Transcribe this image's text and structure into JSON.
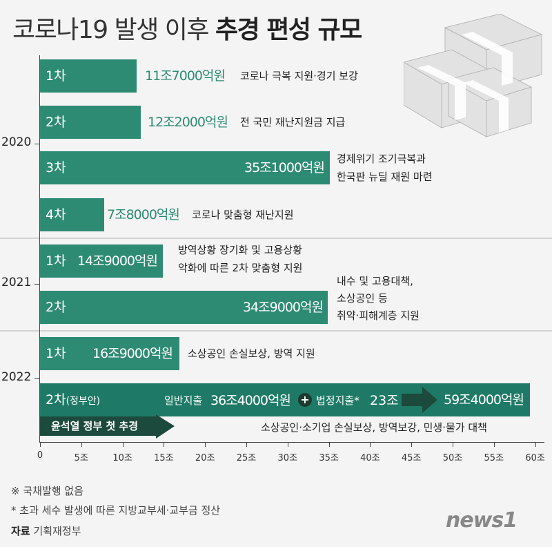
{
  "title": {
    "prefix": "코로나19 발생 이후",
    "emph": "추경 편성 규모"
  },
  "x_axis": {
    "unit": "조",
    "ticks": [
      "0",
      "5조",
      "10조",
      "15조",
      "20조",
      "25조",
      "30조",
      "35조",
      "40조",
      "45조",
      "50조",
      "55조",
      "60조"
    ],
    "max": 60
  },
  "groups": [
    {
      "year": "2020",
      "bars": [
        {
          "round": "1차",
          "value_label": "11조7000억원",
          "desc": [
            "코로나 극복 지원·경기 보강"
          ]
        },
        {
          "round": "2차",
          "value_label": "12조2000억원",
          "desc": [
            "전 국민 재난지원금 지급"
          ]
        },
        {
          "round": "3차",
          "value_label": "35조1000억원",
          "desc": [
            "경제위기 조기극복과",
            "한국판 뉴딜 재원 마련"
          ]
        },
        {
          "round": "4차",
          "value_label": "7조8000억원",
          "desc": [
            "코로나 맞춤형 재난지원"
          ]
        }
      ]
    },
    {
      "year": "2021",
      "bars": [
        {
          "round": "1차",
          "value_label": "14조9000억원",
          "desc": [
            "방역상황 장기화 및 고용상황",
            "악화에 따른 2차 맞춤형 지원"
          ]
        },
        {
          "round": "2차",
          "value_label": "34조9000억원",
          "desc": [
            "내수 및 고용대책,",
            "소상공인 등",
            "취약·피해계층 지원"
          ]
        }
      ]
    },
    {
      "year": "2022",
      "bars": [
        {
          "round": "1차",
          "value_label": "16조9000억원",
          "desc": [
            "소상공인 손실보상, 방역 지원"
          ]
        },
        {
          "round": "2차",
          "round_note": "(정부안)",
          "value_label": "59조4000억원",
          "general_label": "일반지출",
          "general_value": "36조4000억원",
          "plus": "+",
          "legal_label": "법정지출*",
          "legal_value": "23조",
          "desc": [
            "소상공인·소기업 손실보상, 방역보강, 민생·물가 대책"
          ]
        }
      ]
    }
  ],
  "banner": "윤석열 정부 첫 추경",
  "notes": [
    "※ 국채발행 없음",
    "*  초과 세수 발생에 따른 지방교부세·교부금 정산"
  ],
  "source": {
    "label": "자료",
    "value": "기획재정부"
  },
  "logo": "news1",
  "colors": {
    "bar": "#2e8b73",
    "bar_dark": "#1e7a66",
    "arrow": "#1c4a3c"
  },
  "chart_data": {
    "type": "bar",
    "orientation": "horizontal",
    "title": "코로나19 발생 이후 추경 편성 규모",
    "xlabel": "",
    "ylabel": "",
    "xlim": [
      0,
      60
    ],
    "categories": [
      "2020 1차",
      "2020 2차",
      "2020 3차",
      "2020 4차",
      "2021 1차",
      "2021 2차",
      "2022 1차",
      "2022 2차(정부안)"
    ],
    "values": [
      11.7,
      12.2,
      35.1,
      7.8,
      14.9,
      34.9,
      16.9,
      59.4
    ],
    "stacked_2022_2": {
      "일반지출": 36.4,
      "법정지출": 23
    }
  }
}
